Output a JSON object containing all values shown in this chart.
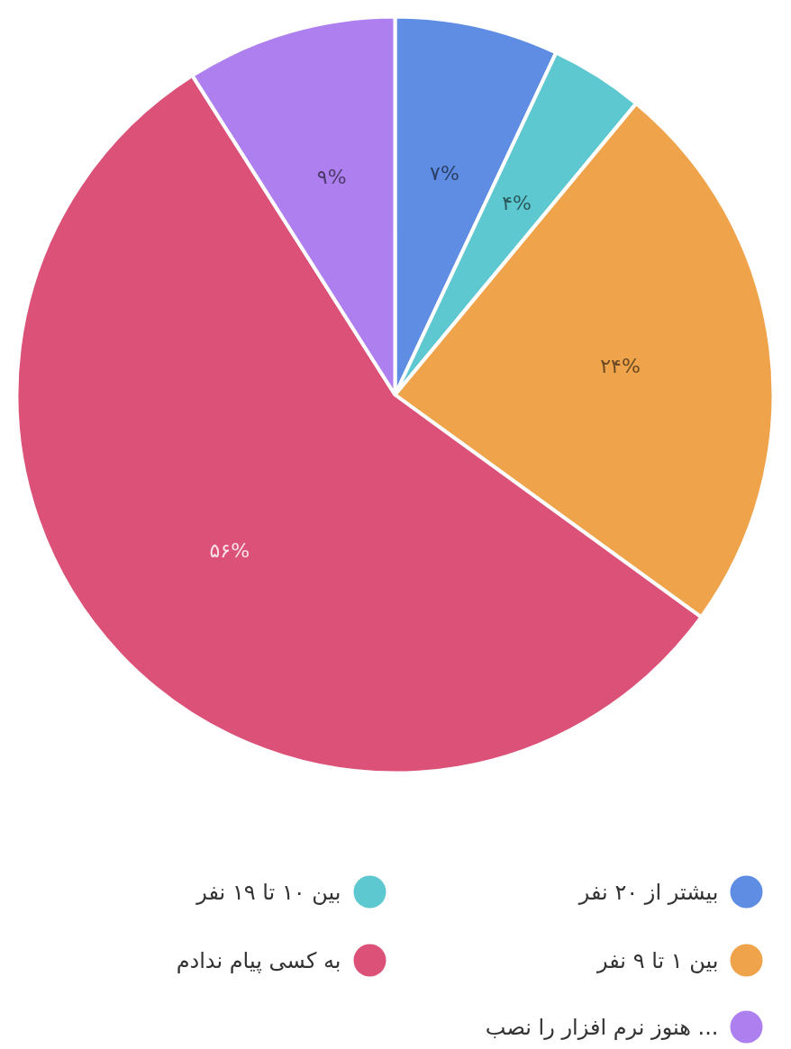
{
  "chart_data": {
    "type": "pie",
    "categories": [
      "بیشتر از ۲۰ نفر",
      "بین ۱۰ تا ۱۹ نفر",
      "بین ۱ تا ۹ نفر",
      "به کسی پیام ندادم",
      "هنوز نرم افزار را نصب ..."
    ],
    "values": [
      7,
      4,
      24,
      56,
      9
    ],
    "value_labels": [
      "۷%",
      "۴%",
      "۲۴%",
      "۵۶%",
      "۹%"
    ],
    "colors": [
      "#5f8de3",
      "#5ec8d0",
      "#efa44c",
      "#db5178",
      "#ae80ef"
    ],
    "legend": "bottom"
  }
}
